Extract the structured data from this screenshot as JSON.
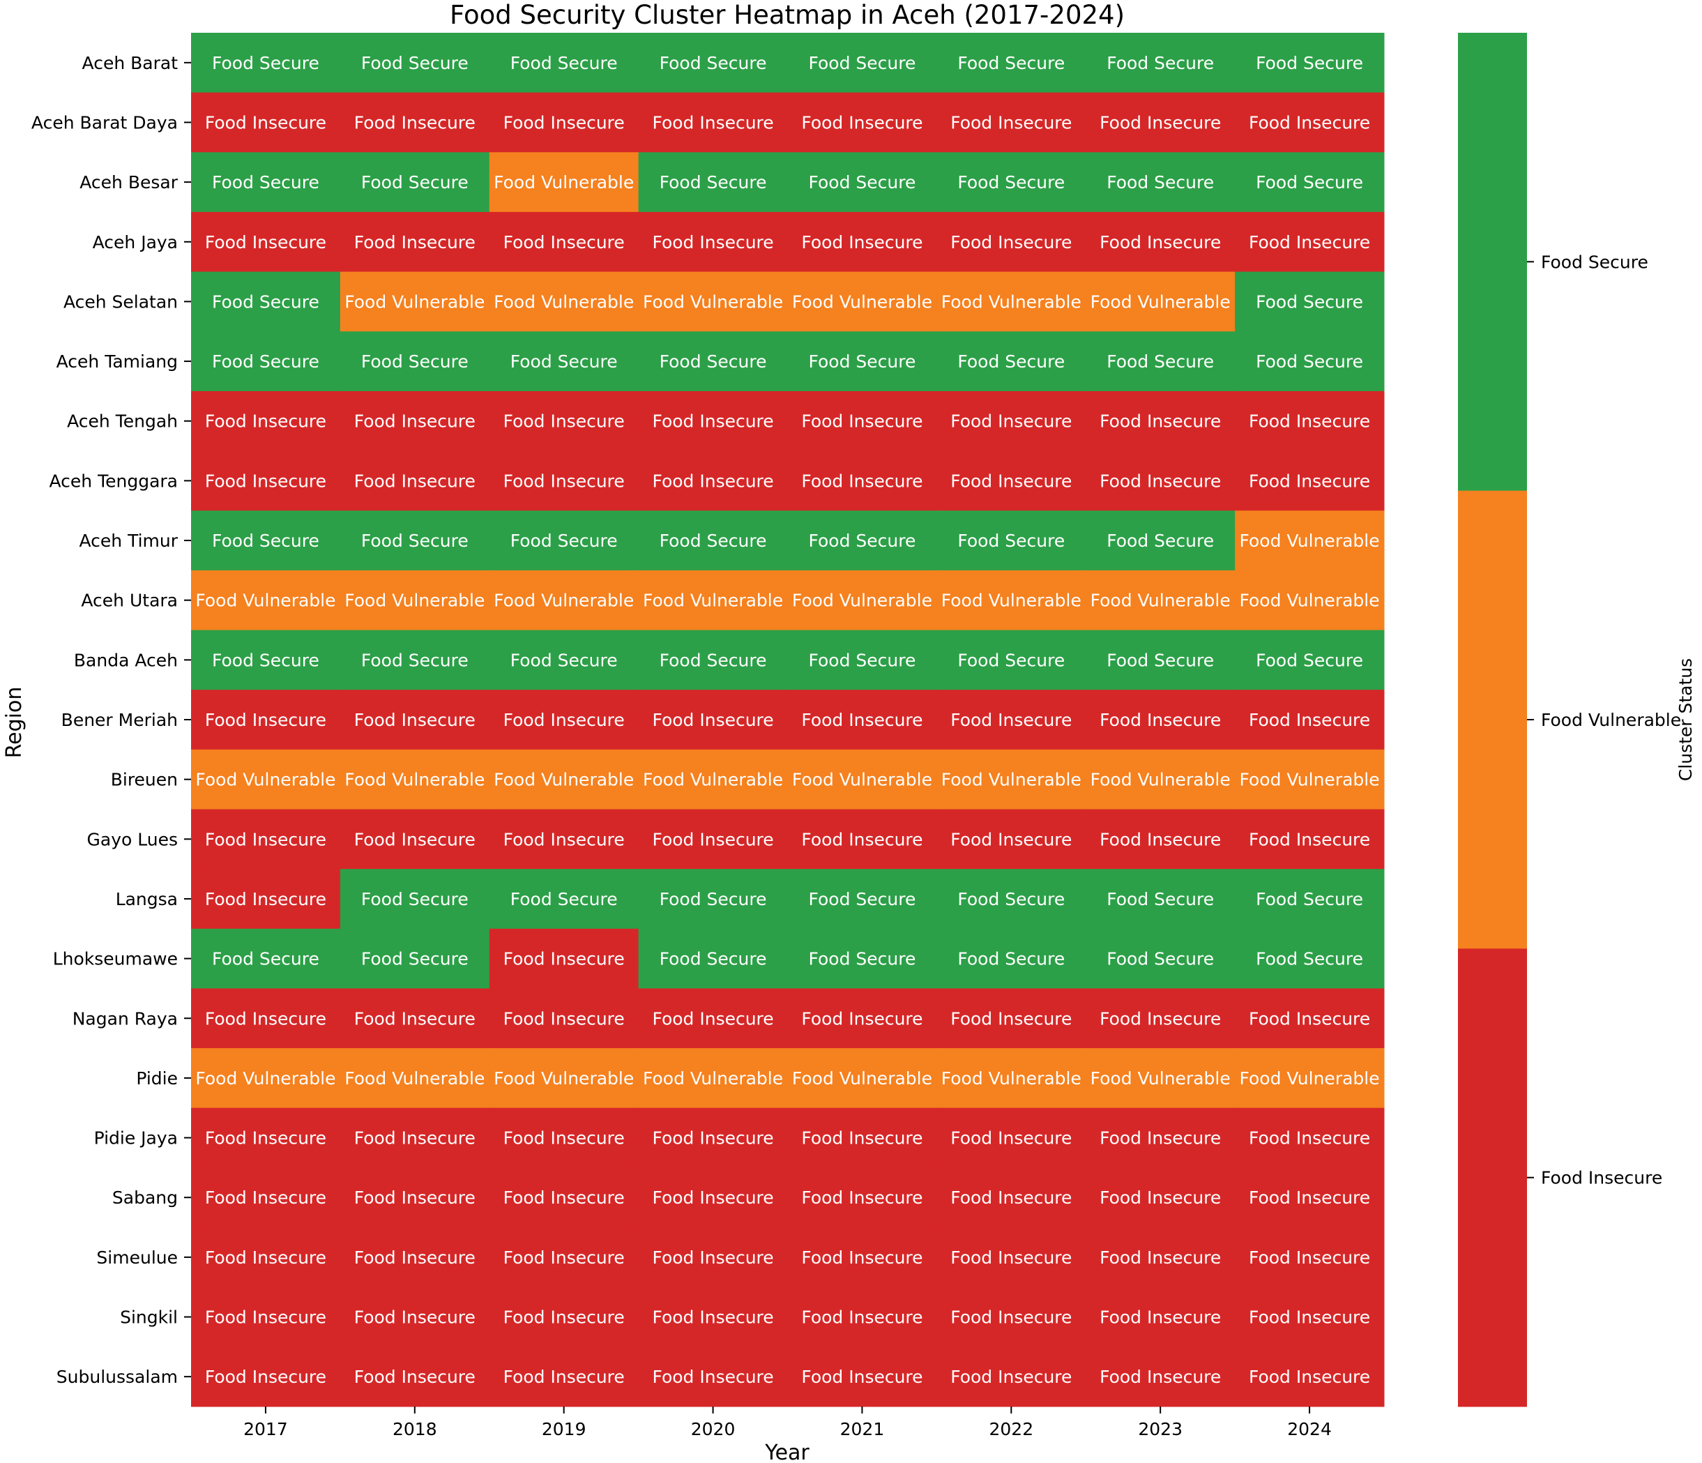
{
  "chart_data": {
    "type": "heatmap",
    "title": "Food Security Cluster Heatmap in Aceh (2017-2024)",
    "xlabel": "Year",
    "ylabel": "Region",
    "colorbar_label": "Cluster Status",
    "x": [
      "2017",
      "2018",
      "2019",
      "2020",
      "2021",
      "2022",
      "2023",
      "2024"
    ],
    "y": [
      "Aceh Barat",
      "Aceh Barat Daya",
      "Aceh Besar",
      "Aceh Jaya",
      "Aceh Selatan",
      "Aceh Tamiang",
      "Aceh Tengah",
      "Aceh Tenggara",
      "Aceh Timur",
      "Aceh Utara",
      "Banda Aceh",
      "Bener Meriah",
      "Bireuen",
      "Gayo Lues",
      "Langsa",
      "Lhokseumawe",
      "Nagan Raya",
      "Pidie",
      "Pidie Jaya",
      "Sabang",
      "Simeulue",
      "Singkil",
      "Subulussalam"
    ],
    "categories": [
      "Food Insecure",
      "Food Vulnerable",
      "Food Secure"
    ],
    "colors": {
      "Food Insecure": "#d62728",
      "Food Vulnerable": "#f5811f",
      "Food Secure": "#2ca048"
    },
    "values": [
      [
        2,
        2,
        2,
        2,
        2,
        2,
        2,
        2
      ],
      [
        0,
        0,
        0,
        0,
        0,
        0,
        0,
        0
      ],
      [
        2,
        2,
        1,
        2,
        2,
        2,
        2,
        2
      ],
      [
        0,
        0,
        0,
        0,
        0,
        0,
        0,
        0
      ],
      [
        2,
        1,
        1,
        1,
        1,
        1,
        1,
        2
      ],
      [
        2,
        2,
        2,
        2,
        2,
        2,
        2,
        2
      ],
      [
        0,
        0,
        0,
        0,
        0,
        0,
        0,
        0
      ],
      [
        0,
        0,
        0,
        0,
        0,
        0,
        0,
        0
      ],
      [
        2,
        2,
        2,
        2,
        2,
        2,
        2,
        1
      ],
      [
        1,
        1,
        1,
        1,
        1,
        1,
        1,
        1
      ],
      [
        2,
        2,
        2,
        2,
        2,
        2,
        2,
        2
      ],
      [
        0,
        0,
        0,
        0,
        0,
        0,
        0,
        0
      ],
      [
        1,
        1,
        1,
        1,
        1,
        1,
        1,
        1
      ],
      [
        0,
        0,
        0,
        0,
        0,
        0,
        0,
        0
      ],
      [
        0,
        2,
        2,
        2,
        2,
        2,
        2,
        2
      ],
      [
        2,
        2,
        0,
        2,
        2,
        2,
        2,
        2
      ],
      [
        0,
        0,
        0,
        0,
        0,
        0,
        0,
        0
      ],
      [
        1,
        1,
        1,
        1,
        1,
        1,
        1,
        1
      ],
      [
        0,
        0,
        0,
        0,
        0,
        0,
        0,
        0
      ],
      [
        0,
        0,
        0,
        0,
        0,
        0,
        0,
        0
      ],
      [
        0,
        0,
        0,
        0,
        0,
        0,
        0,
        0
      ],
      [
        0,
        0,
        0,
        0,
        0,
        0,
        0,
        0
      ],
      [
        0,
        0,
        0,
        0,
        0,
        0,
        0,
        0
      ]
    ],
    "grid": false,
    "legend": "colorbar-right"
  }
}
